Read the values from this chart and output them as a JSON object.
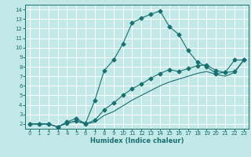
{
  "title": "",
  "xlabel": "Humidex (Indice chaleur)",
  "bg_color": "#c2e8e8",
  "grid_color": "#ffffff",
  "line_color": "#1a7070",
  "xlim": [
    -0.5,
    23.5
  ],
  "ylim": [
    1.5,
    14.5
  ],
  "xticks": [
    0,
    1,
    2,
    3,
    4,
    5,
    6,
    7,
    8,
    9,
    10,
    11,
    12,
    13,
    14,
    15,
    16,
    17,
    18,
    19,
    20,
    21,
    22,
    23
  ],
  "yticks": [
    2,
    3,
    4,
    5,
    6,
    7,
    8,
    9,
    10,
    11,
    12,
    13,
    14
  ],
  "line1_x": [
    0,
    1,
    2,
    3,
    4,
    5,
    6,
    7,
    8,
    9,
    10,
    11,
    12,
    13,
    14,
    15,
    16,
    17,
    18,
    19,
    20,
    21,
    22,
    23
  ],
  "line1_y": [
    2.0,
    2.0,
    2.0,
    1.7,
    2.1,
    2.3,
    2.1,
    4.5,
    7.6,
    8.7,
    10.4,
    12.6,
    13.1,
    13.5,
    13.85,
    12.2,
    11.4,
    9.7,
    8.5,
    8.0,
    7.3,
    7.4,
    8.7,
    8.7
  ],
  "line2_x": [
    0,
    1,
    2,
    3,
    4,
    5,
    6,
    7,
    8,
    9,
    10,
    11,
    12,
    13,
    14,
    15,
    16,
    17,
    18,
    19,
    20,
    21,
    22,
    23
  ],
  "line2_y": [
    2.0,
    2.0,
    2.0,
    1.7,
    2.2,
    2.6,
    2.0,
    2.4,
    3.5,
    4.2,
    5.0,
    5.7,
    6.2,
    6.8,
    7.3,
    7.7,
    7.5,
    7.8,
    8.1,
    8.2,
    7.6,
    7.4,
    7.5,
    8.7
  ],
  "line3_x": [
    0,
    1,
    2,
    3,
    4,
    5,
    6,
    7,
    8,
    9,
    10,
    11,
    12,
    13,
    14,
    15,
    16,
    17,
    18,
    19,
    20,
    21,
    22,
    23
  ],
  "line3_y": [
    2.0,
    2.0,
    2.0,
    1.7,
    2.1,
    2.3,
    2.0,
    2.2,
    2.9,
    3.3,
    3.9,
    4.5,
    5.0,
    5.5,
    6.0,
    6.4,
    6.7,
    7.0,
    7.3,
    7.5,
    7.2,
    7.0,
    7.4,
    8.7
  ]
}
